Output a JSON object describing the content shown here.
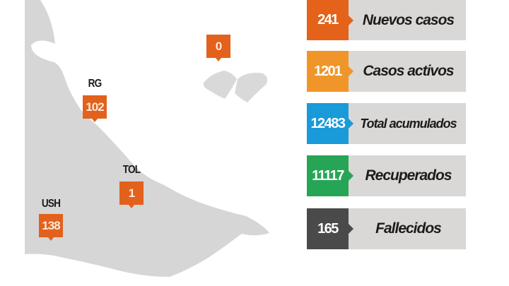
{
  "map": {
    "markers": [
      {
        "label": "RG",
        "value": "102"
      },
      {
        "label": "TOL",
        "value": "1"
      },
      {
        "label": "USH",
        "value": "138"
      },
      {
        "label": "",
        "value": "0"
      }
    ]
  },
  "stats": [
    {
      "value": "241",
      "label": "Nuevos casos",
      "color": "#e4621a"
    },
    {
      "value": "1201",
      "label": "Casos activos",
      "color": "#f0952a"
    },
    {
      "value": "12483",
      "label": "Total acumulados",
      "color": "#1a9ad8"
    },
    {
      "value": "11117",
      "label": "Recuperados",
      "color": "#27a556"
    },
    {
      "value": "165",
      "label": "Fallecidos",
      "color": "#4a4a4a"
    }
  ],
  "colors": {
    "land": "#d6d6d6",
    "marker": "#e2611c",
    "panel": "#d9d8d6"
  }
}
